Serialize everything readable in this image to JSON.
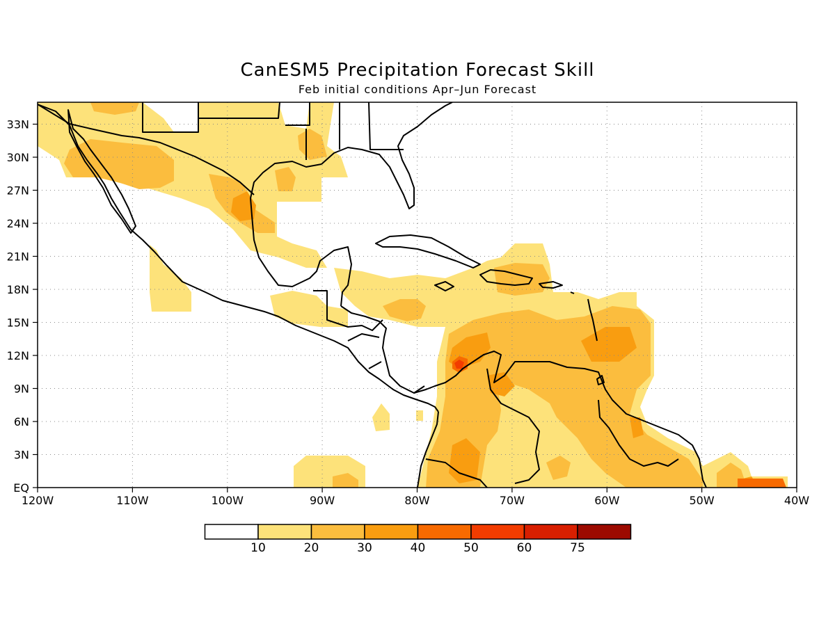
{
  "map": {
    "title": "CanESM5 Precipitation Forecast Skill",
    "subtitle": "Feb initial conditions  Apr–Jun Forecast",
    "longitude_labels": [
      "120W",
      "110W",
      "100W",
      "90W",
      "80W",
      "70W",
      "60W",
      "50W",
      "40W"
    ],
    "latitude_labels": [
      "EQ",
      "3N",
      "6N",
      "9N",
      "12N",
      "15N",
      "18N",
      "21N",
      "24N",
      "27N",
      "30N",
      "33N"
    ],
    "extent": {
      "lon": [
        -120,
        -40
      ],
      "lat": [
        0,
        35
      ]
    },
    "grid": "dotted"
  },
  "colorbar": {
    "bins": [
      {
        "color": "#ffffff"
      },
      {
        "color": "#fde27a"
      },
      {
        "color": "#fbbd3e"
      },
      {
        "color": "#f99d10"
      },
      {
        "color": "#f76a00"
      },
      {
        "color": "#f23c00"
      },
      {
        "color": "#d81f00"
      },
      {
        "color": "#9c0a00"
      }
    ],
    "labels": [
      "10",
      "20",
      "30",
      "40",
      "50",
      "60",
      "75"
    ]
  }
}
